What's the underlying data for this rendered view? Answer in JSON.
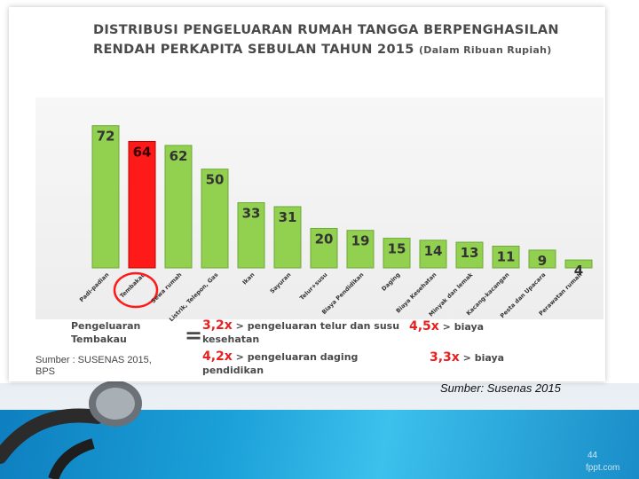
{
  "slide": {
    "title_line_1": "DISTRIBUSI PENGELUARAN RUMAH TANGGA BERPENGHASILAN",
    "title_line_2": "RENDAH PERKAPITA SEBULAN TAHUN 2015",
    "title_unit": "(Dalam Ribuan Rupiah)",
    "source_inner_1": "Sumber : SUSENAS 2015,",
    "source_inner_2": "BPS",
    "source_caption": "Sumber: Susenas 2015",
    "page_number": "44",
    "watermark": "fppt.com"
  },
  "notes": {
    "label_1": "Pengeluaran",
    "label_2": "Tembakau",
    "equals": "=",
    "n1_factor": "3,2x",
    "n1_text_1": " > pengeluaran telur dan susu",
    "n1_text_2": "kesehatan",
    "n2_factor": "4,5x",
    "n2_text": " > biaya",
    "n3_factor": "4,2x",
    "n3_text_1": " > pengeluaran daging",
    "n3_text_2": "pendidikan",
    "n4_factor": "3,3x",
    "n4_text": " > biaya"
  },
  "colors": {
    "bar_default": "#92d050",
    "bar_highlight": "#ff1a1a",
    "highlight_text": "#e8201f",
    "bottom_bar": "#1ba0d8"
  },
  "chart_data": {
    "type": "bar",
    "title": "DISTRIBUSI PENGELUARAN RUMAH TANGGA BERPENGHASILAN RENDAH PERKAPITA SEBULAN TAHUN 2015",
    "categories": [
      "Padi-padian",
      "Tembakau",
      "Sewa rumah",
      "Listrik, Telepon, Gas",
      "Ikan",
      "Sayuran",
      "Telur+susu",
      "Biaya Pendidikan",
      "Daging",
      "Biaya Kesehatan",
      "Minyak dan lemak",
      "Kacang-kacangan",
      "Pesta dan Upacara",
      "Perawatan rumah"
    ],
    "values": [
      72,
      64,
      62,
      50,
      33,
      31,
      20,
      19,
      15,
      14,
      13,
      11,
      9,
      4
    ],
    "highlight_index": 1,
    "ylim": [
      0,
      75
    ],
    "grid": false,
    "legend": "none",
    "data_labels": true
  }
}
